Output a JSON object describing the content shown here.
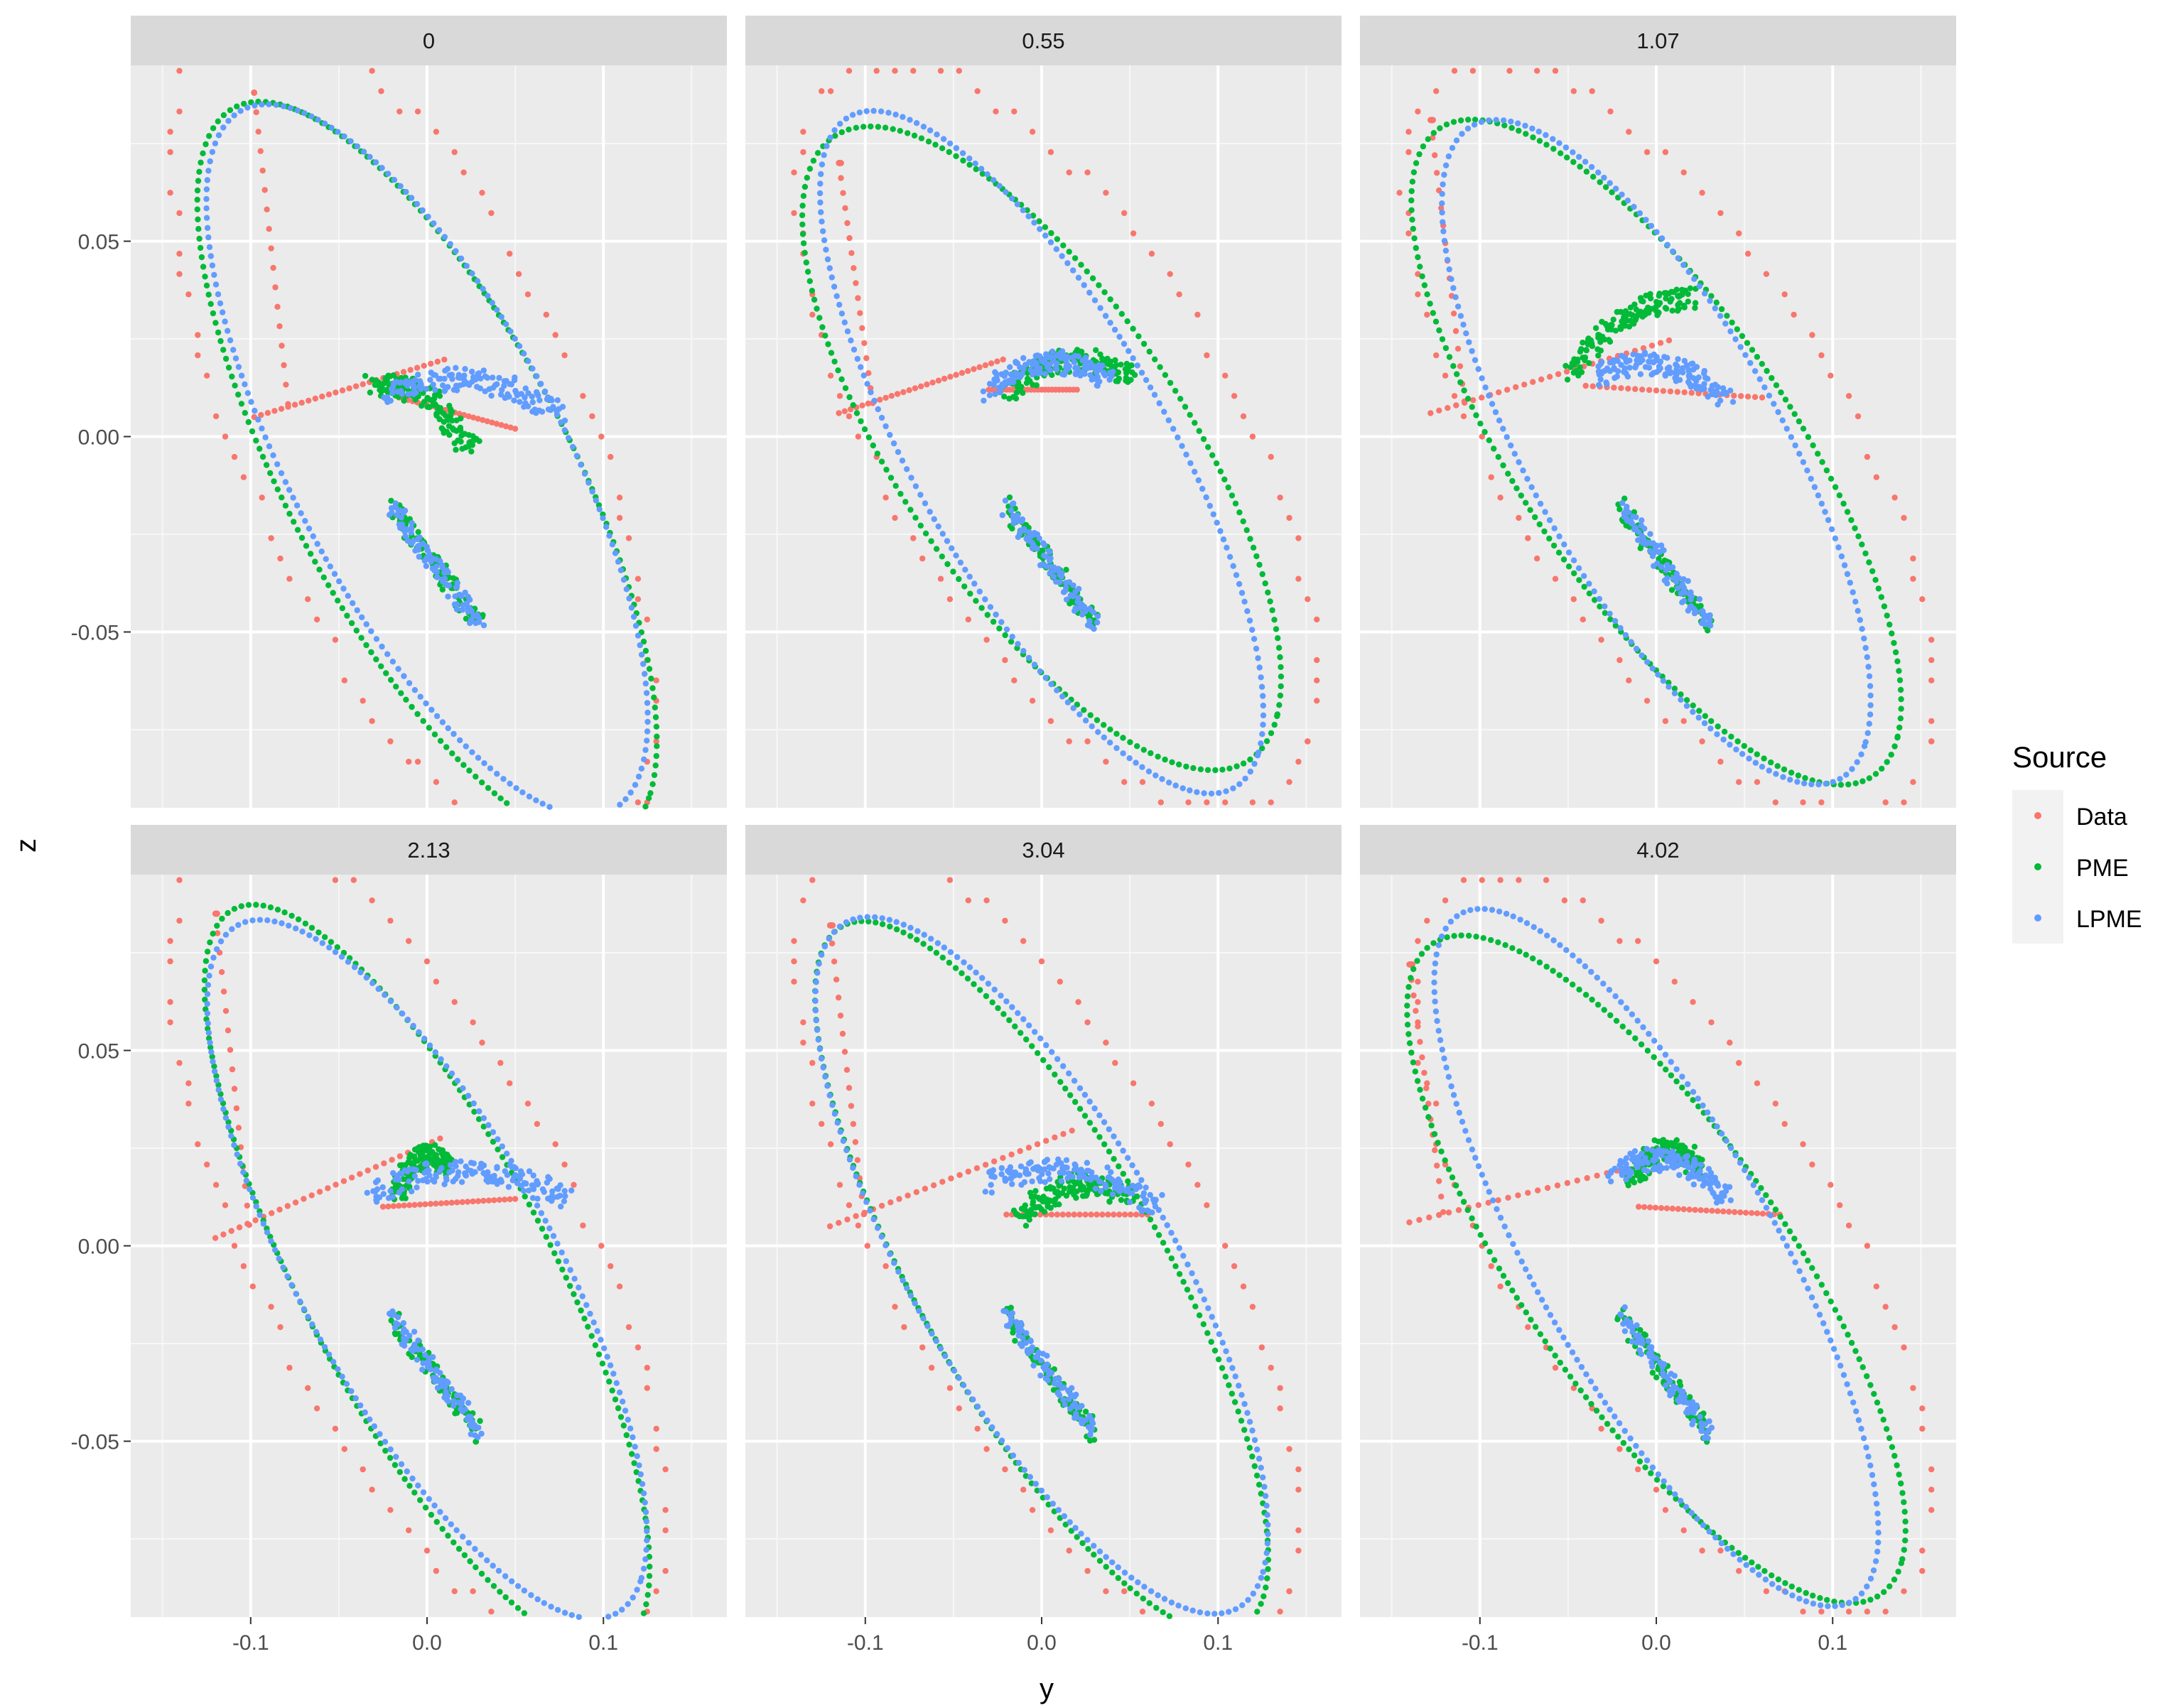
{
  "chart_data": {
    "type": "scatter",
    "title": "",
    "xlabel": "y",
    "ylabel": "z",
    "xlim": [
      -0.168,
      0.17
    ],
    "ylim": [
      -0.095,
      0.095
    ],
    "x_ticks": [
      -0.1,
      0.0,
      0.1
    ],
    "x_tick_labels": [
      "-0.1",
      "0.0",
      "0.1"
    ],
    "y_ticks": [
      -0.05,
      0.0,
      0.05
    ],
    "y_tick_labels": [
      "-0.05",
      "0.00",
      "0.05"
    ],
    "grid": true,
    "legend": {
      "title": "Source",
      "position": "right",
      "entries": [
        {
          "label": "Data",
          "color": "#F8766D"
        },
        {
          "label": "PME",
          "color": "#00BA38"
        },
        {
          "label": "LPME",
          "color": "#619CFF"
        }
      ]
    },
    "facets": [
      {
        "label": "0",
        "series": {
          "Data": {
            "ellipse": [
              0.0,
              0.0,
              0.159,
              0.071,
              -35
            ],
            "xshift": -0.008,
            "spacing": 0.012,
            "swing": [
              -0.098,
              0.088,
              -0.1,
              0.005,
              0.012,
              0.02
            ],
            "mid": [
              -0.016,
              0.01,
              0.05,
              0.002
            ]
          },
          "PME": {
            "ellipse": [
              0.0,
              -0.009,
              0.151,
              0.056,
              -33
            ],
            "spacing": 0.004,
            "spiral": [
              -0.031,
              0.013,
              0.026,
              -0.004
            ]
          },
          "LPME": {
            "ellipse": [
              0.0,
              -0.006,
              0.145,
              0.054,
              -33
            ],
            "spacing": 0.004,
            "spiral": [
              -0.025,
              0.011,
              0.075,
              0.006
            ]
          }
        }
      },
      {
        "label": "0.55",
        "series": {
          "Data": {
            "ellipse": [
              0.0,
              0.0,
              0.163,
              0.066,
              -28
            ],
            "xshift": 0.009,
            "spacing": 0.012,
            "swing": [
              -0.115,
              0.07,
              -0.09,
              0.006,
              -0.02,
              0.02
            ],
            "mid": [
              -0.03,
              0.012,
              0.02,
              0.012
            ]
          },
          "PME": {
            "ellipse": [
              0.0,
              -0.003,
              0.15,
              0.052,
              -27
            ],
            "spacing": 0.004,
            "spiral": [
              -0.02,
              0.012,
              0.052,
              0.015
            ]
          },
          "LPME": {
            "ellipse": [
              0.0,
              -0.004,
              0.145,
              0.049,
              -32
            ],
            "spacing": 0.004,
            "spiral": [
              -0.03,
              0.012,
              0.038,
              0.014
            ]
          }
        }
      },
      {
        "label": "1.07",
        "series": {
          "Data": {
            "ellipse": [
              0.0,
              0.0,
              0.167,
              0.064,
              -28
            ],
            "xshift": 0.007,
            "spacing": 0.012,
            "swing": [
              -0.128,
              0.081,
              -0.1,
              0.006,
              0.01,
              0.025
            ],
            "mid": [
              -0.04,
              0.013,
              0.06,
              0.01
            ]
          },
          "PME": {
            "ellipse": [
              0.0,
              -0.004,
              0.155,
              0.05,
              -28
            ],
            "spacing": 0.004,
            "spiral": [
              -0.05,
              0.016,
              0.02,
              0.035
            ]
          },
          "LPME": {
            "ellipse": [
              0.0,
              -0.004,
              0.14,
              0.049,
              -32
            ],
            "spacing": 0.004,
            "spiral": [
              -0.035,
              0.015,
              0.04,
              0.01
            ]
          }
        }
      },
      {
        "label": "2.13",
        "series": {
          "Data": {
            "ellipse": [
              0.0,
              0.0,
              0.162,
              0.066,
              -33
            ],
            "xshift": -0.005,
            "spacing": 0.012,
            "swing": [
              -0.12,
              0.085,
              -0.1,
              0.002,
              0.01,
              0.028
            ],
            "mid": [
              -0.025,
              0.01,
              0.05,
              0.012
            ]
          },
          "PME": {
            "ellipse": [
              0.0,
              -0.008,
              0.15,
              0.05,
              -35
            ],
            "spacing": 0.004,
            "spiral": [
              -0.018,
              0.013,
              0.012,
              0.02
            ]
          },
          "LPME": {
            "ellipse": [
              0.0,
              -0.006,
              0.145,
              0.05,
              -33
            ],
            "spacing": 0.004,
            "spiral": [
              -0.032,
              0.014,
              0.08,
              0.012
            ]
          }
        }
      },
      {
        "label": "3.04",
        "series": {
          "Data": {
            "ellipse": [
              0.0,
              0.0,
              0.163,
              0.063,
              -32
            ],
            "xshift": 0.003,
            "spacing": 0.012,
            "swing": [
              -0.12,
              0.082,
              -0.09,
              0.005,
              0.02,
              0.03
            ],
            "mid": [
              -0.02,
              0.008,
              0.06,
              0.008
            ]
          },
          "PME": {
            "ellipse": [
              0.0,
              -0.008,
              0.15,
              0.048,
              -33
            ],
            "spacing": 0.004,
            "spiral": [
              -0.013,
              0.007,
              0.05,
              0.012
            ]
          },
          "LPME": {
            "ellipse": [
              0.0,
              -0.005,
              0.148,
              0.05,
              -32
            ],
            "spacing": 0.004,
            "spiral": [
              -0.03,
              0.016,
              0.065,
              0.01
            ]
          }
        }
      },
      {
        "label": "4.02",
        "series": {
          "Data": {
            "ellipse": [
              0.0,
              0.0,
              0.163,
              0.062,
              -28
            ],
            "xshift": 0.009,
            "spacing": 0.012,
            "swing": [
              -0.14,
              0.072,
              -0.105,
              0.006,
              0.02,
              0.024
            ],
            "mid": [
              -0.01,
              0.01,
              0.07,
              0.008
            ]
          },
          "PME": {
            "ellipse": [
              0.0,
              -0.006,
              0.158,
              0.048,
              -28
            ],
            "spacing": 0.004,
            "spiral": [
              -0.015,
              0.017,
              0.025,
              0.02
            ]
          },
          "LPME": {
            "ellipse": [
              0.0,
              -0.003,
              0.147,
              0.047,
              -33
            ],
            "spacing": 0.004,
            "spiral": [
              -0.025,
              0.019,
              0.04,
              0.012
            ]
          }
        }
      }
    ]
  }
}
